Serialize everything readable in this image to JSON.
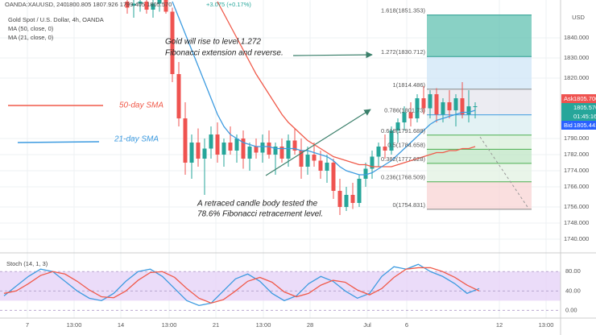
{
  "header": {
    "symbol": "OANDA:XAUUSD, 240",
    "quote": "1800.805  1807.926  1799.405  1805.570",
    "change": "+3.075 (+0.17%)",
    "name": "Gold Spot / U.S. Dollar, 4h, OANDA",
    "ma50_label": "MA (50, close, 0)",
    "ma21_label": "MA (21, close, 0)",
    "currency": "USD"
  },
  "annotations": {
    "gold_line1": "Gold will rise to level 1.272",
    "gold_line2": "Fibonacci extension and reverse.",
    "retrace_line1": "A retraced candle body tested the",
    "retrace_line2": "78.6% Fibonacci retracement level.",
    "sma50": "50-day SMA",
    "sma21": "21-day SMA"
  },
  "price_tags": {
    "ask": "Ask",
    "ask_price": "1805.700",
    "last_price": "1805.570",
    "countdown": "01:45:16",
    "bid": "Bid",
    "bid_price": "1805.441"
  },
  "chart_data": {
    "type": "candlestick",
    "ylim": [
      1734,
      1858.8
    ],
    "yticks": [
      {
        "value": 1840,
        "label": "1840.000"
      },
      {
        "value": 1830,
        "label": "1830.000"
      },
      {
        "value": 1820,
        "label": "1820.000"
      },
      {
        "value": 1790,
        "label": "1790.000"
      },
      {
        "value": 1782,
        "label": "1782.000"
      },
      {
        "value": 1774,
        "label": "1774.000"
      },
      {
        "value": 1766,
        "label": "1766.000"
      },
      {
        "value": 1756,
        "label": "1756.000"
      },
      {
        "value": 1748,
        "label": "1748.000"
      },
      {
        "value": 1740,
        "label": "1740.000"
      }
    ],
    "x_labels": [
      "7",
      "13:00",
      "14",
      "13:00",
      "21",
      "13:00",
      "28",
      "Jul",
      "6",
      "12",
      "13:00"
    ],
    "up_color": "#26a69a",
    "down_color": "#ef5350",
    "candles": [
      [
        1858,
        1860,
        1852,
        1855
      ],
      [
        1856,
        1860,
        1850,
        1857
      ],
      [
        1857,
        1861,
        1853,
        1858
      ],
      [
        1858,
        1862,
        1852,
        1854
      ],
      [
        1854,
        1860,
        1850,
        1857
      ],
      [
        1857,
        1863,
        1853,
        1859
      ],
      [
        1859,
        1862,
        1852,
        1853
      ],
      [
        1853,
        1855,
        1818,
        1822
      ],
      [
        1822,
        1828,
        1796,
        1800
      ],
      [
        1800,
        1808,
        1772,
        1778
      ],
      [
        1778,
        1792,
        1770,
        1788
      ],
      [
        1788,
        1795,
        1776,
        1780
      ],
      [
        1780,
        1790,
        1762,
        1785
      ],
      [
        1785,
        1796,
        1780,
        1792
      ],
      [
        1792,
        1798,
        1778,
        1782
      ],
      [
        1782,
        1790,
        1776,
        1788
      ],
      [
        1788,
        1796,
        1782,
        1784
      ],
      [
        1784,
        1792,
        1778,
        1790
      ],
      [
        1790,
        1794,
        1775,
        1780
      ],
      [
        1780,
        1788,
        1774,
        1786
      ],
      [
        1786,
        1790,
        1780,
        1783
      ],
      [
        1783,
        1792,
        1778,
        1788
      ],
      [
        1788,
        1794,
        1780,
        1782
      ],
      [
        1782,
        1788,
        1772,
        1786
      ],
      [
        1786,
        1790,
        1778,
        1780
      ],
      [
        1780,
        1792,
        1776,
        1789
      ],
      [
        1789,
        1795,
        1782,
        1784
      ],
      [
        1784,
        1790,
        1770,
        1776
      ],
      [
        1776,
        1786,
        1772,
        1782
      ],
      [
        1782,
        1788,
        1776,
        1779
      ],
      [
        1779,
        1784,
        1770,
        1774
      ],
      [
        1774,
        1782,
        1768,
        1778
      ],
      [
        1778,
        1780,
        1760,
        1764
      ],
      [
        1764,
        1770,
        1752,
        1756
      ],
      [
        1756,
        1766,
        1754,
        1762
      ],
      [
        1762,
        1768,
        1755,
        1758
      ],
      [
        1758,
        1772,
        1756,
        1770
      ],
      [
        1770,
        1778,
        1766,
        1775
      ],
      [
        1775,
        1784,
        1770,
        1781
      ],
      [
        1781,
        1788,
        1776,
        1786
      ],
      [
        1786,
        1792,
        1780,
        1784
      ],
      [
        1784,
        1796,
        1782,
        1794
      ],
      [
        1794,
        1800,
        1788,
        1798
      ],
      [
        1798,
        1806,
        1794,
        1803
      ],
      [
        1803,
        1808,
        1796,
        1800
      ],
      [
        1800,
        1812,
        1798,
        1810
      ],
      [
        1810,
        1816,
        1802,
        1805
      ],
      [
        1805,
        1814,
        1800,
        1812
      ],
      [
        1812,
        1815,
        1798,
        1802
      ],
      [
        1802,
        1810,
        1798,
        1808
      ],
      [
        1808,
        1814,
        1800,
        1804
      ],
      [
        1804,
        1812,
        1796,
        1810
      ],
      [
        1810,
        1818,
        1800,
        1802
      ],
      [
        1802,
        1814,
        1798,
        1806
      ],
      [
        1806,
        1808,
        1800,
        1806
      ]
    ],
    "series": [
      {
        "name": "MA (50, close, 0)",
        "color": "#f05a4a",
        "values": [
          null,
          null,
          null,
          null,
          null,
          null,
          null,
          null,
          null,
          null,
          null,
          null,
          null,
          null,
          1858,
          1852,
          1846,
          1840,
          1834,
          1828,
          1822,
          1817,
          1812,
          1807,
          1802,
          1798,
          1795,
          1792,
          1789,
          1787,
          1785,
          1783,
          1781,
          1780,
          1779,
          1778,
          1777,
          1777,
          1776,
          1776,
          1776,
          1776,
          1777,
          1778,
          1779,
          1780,
          1781,
          1782,
          1783,
          1783,
          1784,
          1784,
          1785,
          1785,
          1786
        ]
      },
      {
        "name": "MA (21, close, 0)",
        "color": "#3d9be0",
        "values": [
          null,
          null,
          null,
          null,
          null,
          null,
          null,
          1858,
          1850,
          1842,
          1834,
          1826,
          1818,
          1810,
          1802,
          1796,
          1792,
          1790,
          1788,
          1787,
          1786,
          1786,
          1786,
          1785,
          1785,
          1785,
          1785,
          1784,
          1784,
          1783,
          1782,
          1781,
          1779,
          1776,
          1774,
          1773,
          1772,
          1772,
          1773,
          1775,
          1777,
          1779,
          1782,
          1785,
          1788,
          1791,
          1794,
          1797,
          1799,
          1800,
          1801,
          1802,
          1803,
          1803,
          1804
        ]
      }
    ],
    "fib_levels": [
      {
        "label": "1.618(1851.353)",
        "value": 1851.353
      },
      {
        "label": "1.272(1830.712)",
        "value": 1830.712
      },
      {
        "label": "1(1814.486)",
        "value": 1814.486
      },
      {
        "label": "0.786(1801.73)",
        "value": 1801.73
      },
      {
        "label": "0.618(1791.688)",
        "value": 1791.688
      },
      {
        "label": "0.5(1784.658)",
        "value": 1784.658
      },
      {
        "label": "0.382(1777.628)",
        "value": 1777.628
      },
      {
        "label": "0.236(1768.509)",
        "value": 1768.509
      },
      {
        "label": "0(1754.831)",
        "value": 1754.831
      }
    ],
    "fib_zone_colors": [
      "#62c2b2",
      "#cfe6f7",
      "#e6e6ee",
      "#d9eef0",
      "#d8efd9",
      "#bfe5c4",
      "#e2f2e2",
      "#f8d4d4"
    ],
    "fib_line_colors": [
      "#2a9d8f",
      "#2a9d8f",
      "#888888",
      "#3d9be0",
      "#4caf50",
      "#4caf50",
      "#4caf50",
      "#4caf50",
      "#888888"
    ]
  },
  "stoch_data": {
    "type": "line",
    "title": "Stoch (14, 1, 3)",
    "ylim": [
      -16,
      112
    ],
    "yticks": [
      {
        "value": 80,
        "label": "80.00"
      },
      {
        "value": 40,
        "label": "40.00"
      },
      {
        "value": 0,
        "label": "0.00"
      }
    ],
    "band": [
      20,
      80
    ],
    "band_color": "#e6d3f7",
    "series": [
      {
        "name": "%K",
        "color": "#3d9be0",
        "values": [
          30,
          50,
          70,
          85,
          80,
          60,
          40,
          25,
          20,
          35,
          60,
          80,
          85,
          70,
          45,
          20,
          10,
          15,
          40,
          65,
          75,
          60,
          35,
          20,
          30,
          55,
          70,
          60,
          40,
          25,
          35,
          70,
          90,
          85,
          95,
          80,
          70,
          55,
          35,
          45
        ]
      },
      {
        "name": "%D",
        "color": "#f05a4a",
        "values": [
          35,
          40,
          55,
          72,
          80,
          75,
          60,
          42,
          28,
          26,
          40,
          62,
          78,
          80,
          68,
          45,
          25,
          15,
          22,
          40,
          60,
          68,
          58,
          38,
          28,
          35,
          52,
          62,
          58,
          42,
          32,
          45,
          68,
          85,
          88,
          88,
          80,
          68,
          52,
          40
        ]
      }
    ]
  }
}
